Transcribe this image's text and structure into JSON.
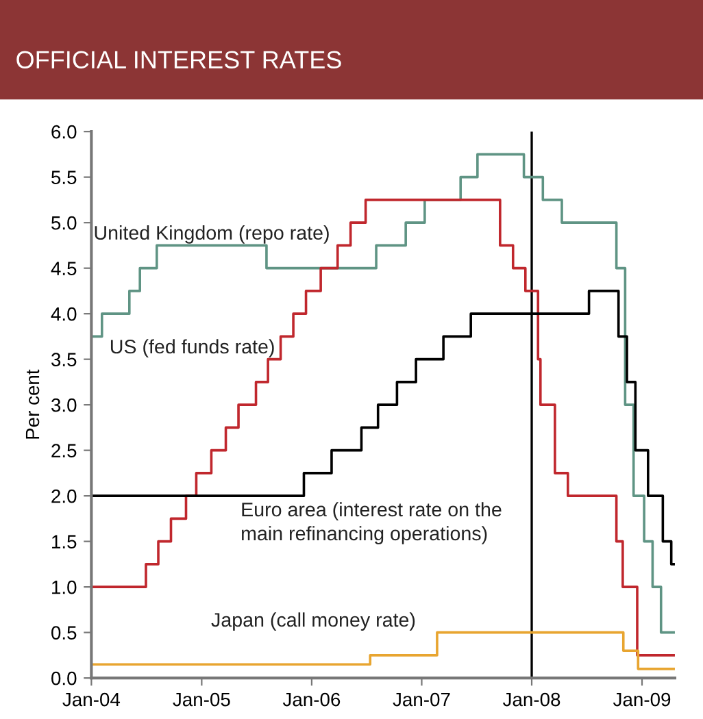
{
  "chart_data": {
    "type": "step",
    "title": "OFFICIAL INTEREST RATES",
    "ylabel": "Per cent",
    "xlim": [
      "2004-01-01",
      "2009-04-20"
    ],
    "ylim": [
      0,
      6
    ],
    "xticks": [
      {
        "value": "2004-01-01",
        "label": "Jan-04"
      },
      {
        "value": "2005-01-01",
        "label": "Jan-05"
      },
      {
        "value": "2006-01-01",
        "label": "Jan-06"
      },
      {
        "value": "2007-01-01",
        "label": "Jan-07"
      },
      {
        "value": "2008-01-01",
        "label": "Jan-08"
      },
      {
        "value": "2009-01-01",
        "label": "Jan-09"
      }
    ],
    "yticks": [
      {
        "value": 0,
        "label": "0.0"
      },
      {
        "value": 0.5,
        "label": "0.5"
      },
      {
        "value": 1,
        "label": "1.0"
      },
      {
        "value": 1.5,
        "label": "1.5"
      },
      {
        "value": 2,
        "label": "2.0"
      },
      {
        "value": 2.5,
        "label": "2.5"
      },
      {
        "value": 3,
        "label": "3.0"
      },
      {
        "value": 3.5,
        "label": "3.5"
      },
      {
        "value": 4,
        "label": "4.0"
      },
      {
        "value": 4.5,
        "label": "4.5"
      },
      {
        "value": 5,
        "label": "5.0"
      },
      {
        "value": 5.5,
        "label": "5.5"
      },
      {
        "value": 6,
        "label": "6.0"
      }
    ],
    "grid": false,
    "legend": false,
    "ref_lines": [
      {
        "axis": "x",
        "value": "2008-01-01",
        "color": "#000000"
      }
    ],
    "series": [
      {
        "name": "United Kingdom (repo rate)",
        "color": "#5f9484",
        "x": [
          "2004-01-01",
          "2004-02-05",
          "2004-05-06",
          "2004-06-10",
          "2004-08-05",
          "2005-08-04",
          "2006-08-03",
          "2006-11-09",
          "2007-01-11",
          "2007-05-10",
          "2007-07-05",
          "2007-12-06",
          "2008-02-07",
          "2008-04-10",
          "2008-10-08",
          "2008-11-06",
          "2008-12-04",
          "2009-01-08",
          "2009-02-05",
          "2009-03-05",
          "2009-04-20"
        ],
        "values": [
          3.75,
          4.0,
          4.25,
          4.5,
          4.75,
          4.5,
          4.75,
          5.0,
          5.25,
          5.5,
          5.75,
          5.5,
          5.25,
          5.0,
          4.5,
          3.0,
          2.0,
          1.5,
          1.0,
          0.5,
          0.5
        ]
      },
      {
        "name": "US (fed funds rate)",
        "color": "#c0272d",
        "x": [
          "2004-01-01",
          "2004-06-30",
          "2004-08-10",
          "2004-09-21",
          "2004-11-10",
          "2004-12-14",
          "2005-02-02",
          "2005-03-22",
          "2005-05-03",
          "2005-06-30",
          "2005-08-09",
          "2005-09-20",
          "2005-11-01",
          "2005-12-13",
          "2006-01-31",
          "2006-03-28",
          "2006-05-10",
          "2006-06-29",
          "2007-09-18",
          "2007-10-31",
          "2007-12-11",
          "2008-01-22",
          "2008-01-30",
          "2008-03-18",
          "2008-04-30",
          "2008-10-08",
          "2008-10-29",
          "2008-12-16",
          "2009-04-20"
        ],
        "values": [
          1.0,
          1.25,
          1.5,
          1.75,
          2.0,
          2.25,
          2.5,
          2.75,
          3.0,
          3.25,
          3.5,
          3.75,
          4.0,
          4.25,
          4.5,
          4.75,
          5.0,
          5.25,
          4.75,
          4.5,
          4.25,
          3.5,
          3.0,
          2.25,
          2.0,
          1.5,
          1.0,
          0.25,
          0.25
        ]
      },
      {
        "name": "Euro area (interest rate on the\nmain refinancing operations)",
        "color": "#000000",
        "x": [
          "2004-01-01",
          "2005-12-06",
          "2006-03-08",
          "2006-06-15",
          "2006-08-09",
          "2006-10-11",
          "2006-12-13",
          "2007-03-14",
          "2007-06-13",
          "2008-07-09",
          "2008-10-15",
          "2008-11-12",
          "2008-12-10",
          "2009-01-21",
          "2009-03-11",
          "2009-04-08",
          "2009-04-20"
        ],
        "values": [
          2.0,
          2.25,
          2.5,
          2.75,
          3.0,
          3.25,
          3.5,
          3.75,
          4.0,
          4.25,
          3.75,
          3.25,
          2.5,
          2.0,
          1.5,
          1.25,
          1.25
        ]
      },
      {
        "name": "Japan (call money rate)",
        "color": "#e8a530",
        "x": [
          "2004-01-01",
          "2006-07-14",
          "2007-02-21",
          "2008-10-31",
          "2008-12-19",
          "2009-04-20"
        ],
        "values": [
          0.15,
          0.25,
          0.5,
          0.3,
          0.1,
          0.1
        ]
      }
    ]
  }
}
